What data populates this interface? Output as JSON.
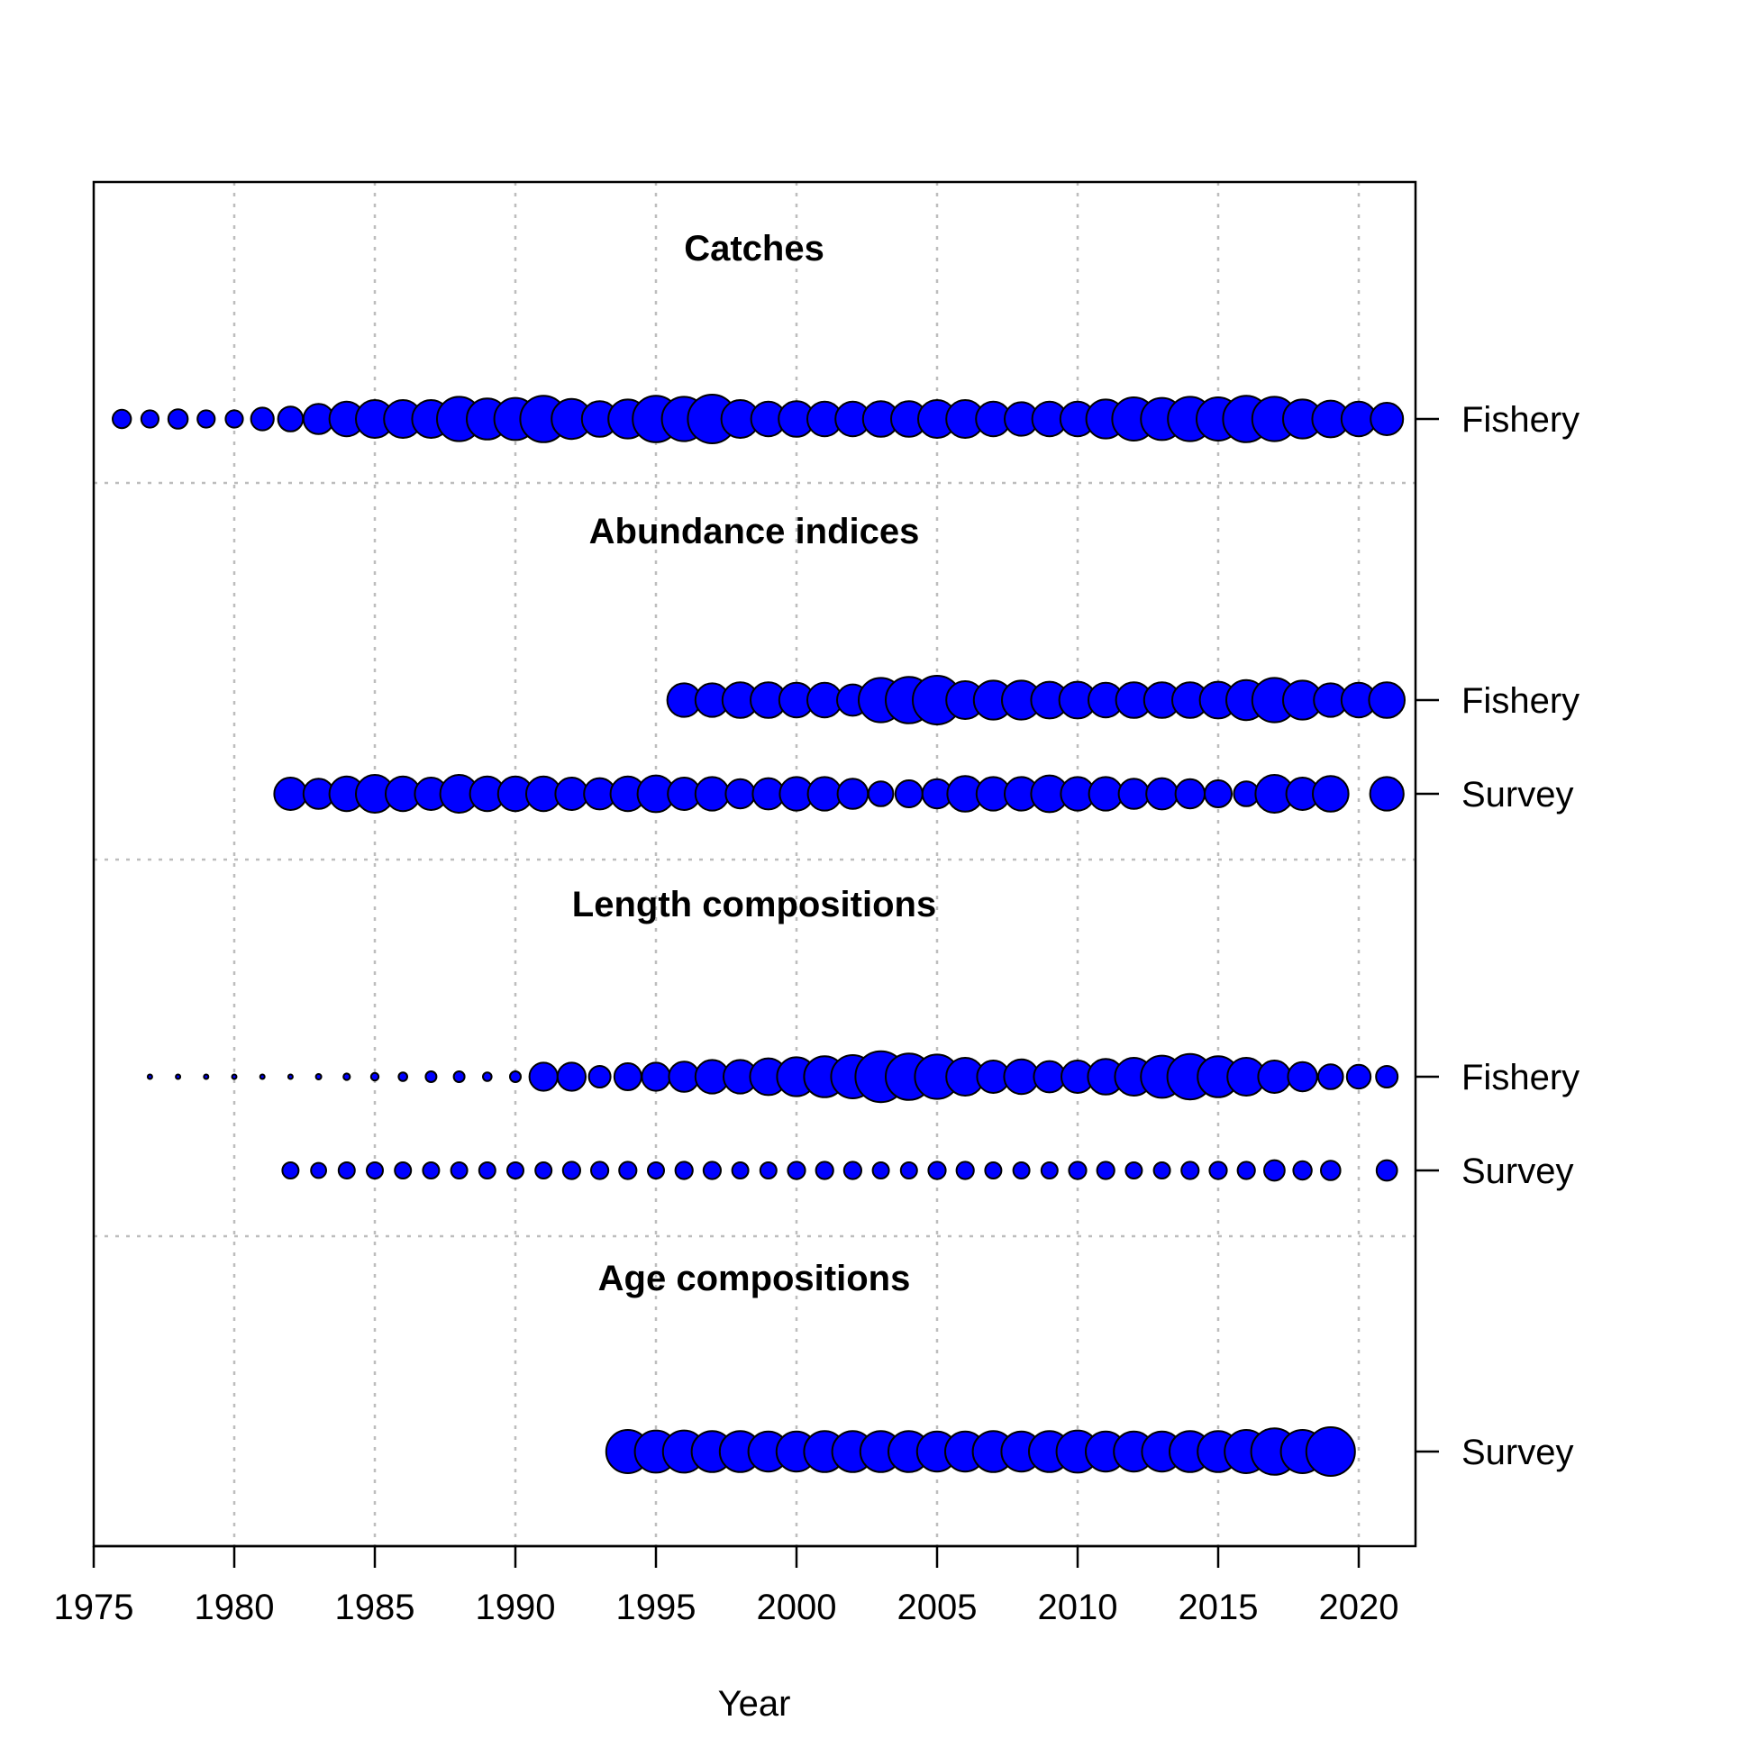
{
  "chart_data": {
    "type": "scatter",
    "subtype": "bubble-timeline",
    "xlabel": "Year",
    "xlim": [
      1975,
      2022
    ],
    "x_ticks": [
      1975,
      1980,
      1985,
      1990,
      1995,
      2000,
      2005,
      2010,
      2015,
      2020
    ],
    "grid": true,
    "point_color": "#0000ff",
    "point_outline": "#000000",
    "sections": [
      {
        "title": "Catches",
        "rows": [
          {
            "label": "Fishery",
            "points": [
              [
                1976,
                0.34
              ],
              [
                1977,
                0.32
              ],
              [
                1978,
                0.36
              ],
              [
                1979,
                0.32
              ],
              [
                1980,
                0.32
              ],
              [
                1981,
                0.42
              ],
              [
                1982,
                0.46
              ],
              [
                1983,
                0.56
              ],
              [
                1984,
                0.64
              ],
              [
                1985,
                0.7
              ],
              [
                1986,
                0.7
              ],
              [
                1987,
                0.7
              ],
              [
                1988,
                0.82
              ],
              [
                1989,
                0.76
              ],
              [
                1990,
                0.78
              ],
              [
                1991,
                0.86
              ],
              [
                1992,
                0.74
              ],
              [
                1993,
                0.66
              ],
              [
                1994,
                0.72
              ],
              [
                1995,
                0.86
              ],
              [
                1996,
                0.82
              ],
              [
                1997,
                0.9
              ],
              [
                1998,
                0.7
              ],
              [
                1999,
                0.64
              ],
              [
                2000,
                0.66
              ],
              [
                2001,
                0.64
              ],
              [
                2002,
                0.64
              ],
              [
                2003,
                0.66
              ],
              [
                2004,
                0.66
              ],
              [
                2005,
                0.7
              ],
              [
                2006,
                0.7
              ],
              [
                2007,
                0.64
              ],
              [
                2008,
                0.62
              ],
              [
                2009,
                0.64
              ],
              [
                2010,
                0.64
              ],
              [
                2011,
                0.72
              ],
              [
                2012,
                0.8
              ],
              [
                2013,
                0.78
              ],
              [
                2014,
                0.82
              ],
              [
                2015,
                0.8
              ],
              [
                2016,
                0.86
              ],
              [
                2017,
                0.82
              ],
              [
                2018,
                0.72
              ],
              [
                2019,
                0.68
              ],
              [
                2020,
                0.64
              ],
              [
                2021,
                0.6
              ]
            ]
          }
        ]
      },
      {
        "title": "Abundance indices",
        "rows": [
          {
            "label": "Fishery",
            "points": [
              [
                1996,
                0.62
              ],
              [
                1997,
                0.62
              ],
              [
                1998,
                0.66
              ],
              [
                1999,
                0.66
              ],
              [
                2000,
                0.64
              ],
              [
                2001,
                0.64
              ],
              [
                2002,
                0.58
              ],
              [
                2003,
                0.82
              ],
              [
                2004,
                0.86
              ],
              [
                2005,
                0.9
              ],
              [
                2006,
                0.7
              ],
              [
                2007,
                0.72
              ],
              [
                2008,
                0.72
              ],
              [
                2009,
                0.68
              ],
              [
                2010,
                0.68
              ],
              [
                2011,
                0.64
              ],
              [
                2012,
                0.66
              ],
              [
                2013,
                0.66
              ],
              [
                2014,
                0.66
              ],
              [
                2015,
                0.68
              ],
              [
                2016,
                0.74
              ],
              [
                2017,
                0.82
              ],
              [
                2018,
                0.72
              ],
              [
                2019,
                0.62
              ],
              [
                2020,
                0.64
              ],
              [
                2021,
                0.66
              ]
            ]
          },
          {
            "label": "Survey",
            "points": [
              [
                1982,
                0.6
              ],
              [
                1983,
                0.56
              ],
              [
                1984,
                0.64
              ],
              [
                1985,
                0.7
              ],
              [
                1986,
                0.64
              ],
              [
                1987,
                0.6
              ],
              [
                1988,
                0.7
              ],
              [
                1989,
                0.64
              ],
              [
                1990,
                0.64
              ],
              [
                1991,
                0.64
              ],
              [
                1992,
                0.6
              ],
              [
                1993,
                0.58
              ],
              [
                1994,
                0.64
              ],
              [
                1995,
                0.68
              ],
              [
                1996,
                0.6
              ],
              [
                1997,
                0.62
              ],
              [
                1998,
                0.54
              ],
              [
                1999,
                0.58
              ],
              [
                2000,
                0.62
              ],
              [
                2001,
                0.62
              ],
              [
                2002,
                0.56
              ],
              [
                2003,
                0.46
              ],
              [
                2004,
                0.5
              ],
              [
                2005,
                0.54
              ],
              [
                2006,
                0.66
              ],
              [
                2007,
                0.62
              ],
              [
                2008,
                0.62
              ],
              [
                2009,
                0.68
              ],
              [
                2010,
                0.62
              ],
              [
                2011,
                0.62
              ],
              [
                2012,
                0.56
              ],
              [
                2013,
                0.58
              ],
              [
                2014,
                0.54
              ],
              [
                2015,
                0.5
              ],
              [
                2016,
                0.46
              ],
              [
                2017,
                0.7
              ],
              [
                2018,
                0.6
              ],
              [
                2019,
                0.66
              ],
              [
                2021,
                0.62
              ]
            ]
          }
        ]
      },
      {
        "title": "Length compositions",
        "rows": [
          {
            "label": "Fishery",
            "points": [
              [
                1977,
                0.05
              ],
              [
                1978,
                0.06
              ],
              [
                1979,
                0.06
              ],
              [
                1980,
                0.06
              ],
              [
                1981,
                0.06
              ],
              [
                1982,
                0.04
              ],
              [
                1983,
                0.1
              ],
              [
                1984,
                0.12
              ],
              [
                1985,
                0.14
              ],
              [
                1986,
                0.16
              ],
              [
                1987,
                0.2
              ],
              [
                1988,
                0.2
              ],
              [
                1989,
                0.16
              ],
              [
                1990,
                0.2
              ],
              [
                1991,
                0.52
              ],
              [
                1992,
                0.52
              ],
              [
                1993,
                0.4
              ],
              [
                1994,
                0.5
              ],
              [
                1995,
                0.52
              ],
              [
                1996,
                0.56
              ],
              [
                1997,
                0.62
              ],
              [
                1998,
                0.62
              ],
              [
                1999,
                0.68
              ],
              [
                2000,
                0.72
              ],
              [
                2001,
                0.76
              ],
              [
                2002,
                0.8
              ],
              [
                2003,
                0.94
              ],
              [
                2004,
                0.86
              ],
              [
                2005,
                0.82
              ],
              [
                2006,
                0.7
              ],
              [
                2007,
                0.6
              ],
              [
                2008,
                0.64
              ],
              [
                2009,
                0.58
              ],
              [
                2010,
                0.6
              ],
              [
                2011,
                0.66
              ],
              [
                2012,
                0.7
              ],
              [
                2013,
                0.78
              ],
              [
                2014,
                0.84
              ],
              [
                2015,
                0.76
              ],
              [
                2016,
                0.7
              ],
              [
                2017,
                0.6
              ],
              [
                2018,
                0.54
              ],
              [
                2019,
                0.46
              ],
              [
                2020,
                0.44
              ],
              [
                2021,
                0.4
              ]
            ]
          },
          {
            "label": "Survey",
            "points": [
              [
                1982,
                0.3
              ],
              [
                1983,
                0.28
              ],
              [
                1984,
                0.3
              ],
              [
                1985,
                0.3
              ],
              [
                1986,
                0.3
              ],
              [
                1987,
                0.3
              ],
              [
                1988,
                0.3
              ],
              [
                1989,
                0.3
              ],
              [
                1990,
                0.3
              ],
              [
                1991,
                0.3
              ],
              [
                1992,
                0.32
              ],
              [
                1993,
                0.32
              ],
              [
                1994,
                0.32
              ],
              [
                1995,
                0.3
              ],
              [
                1996,
                0.32
              ],
              [
                1997,
                0.32
              ],
              [
                1998,
                0.3
              ],
              [
                1999,
                0.3
              ],
              [
                2000,
                0.32
              ],
              [
                2001,
                0.32
              ],
              [
                2002,
                0.32
              ],
              [
                2003,
                0.3
              ],
              [
                2004,
                0.3
              ],
              [
                2005,
                0.32
              ],
              [
                2006,
                0.32
              ],
              [
                2007,
                0.3
              ],
              [
                2008,
                0.3
              ],
              [
                2009,
                0.3
              ],
              [
                2010,
                0.32
              ],
              [
                2011,
                0.32
              ],
              [
                2012,
                0.3
              ],
              [
                2013,
                0.3
              ],
              [
                2014,
                0.32
              ],
              [
                2015,
                0.32
              ],
              [
                2016,
                0.32
              ],
              [
                2017,
                0.38
              ],
              [
                2018,
                0.34
              ],
              [
                2019,
                0.36
              ],
              [
                2021,
                0.38
              ]
            ]
          }
        ]
      },
      {
        "title": "Age compositions",
        "rows": [
          {
            "label": "Survey",
            "points": [
              [
                1994,
                0.8
              ],
              [
                1995,
                0.78
              ],
              [
                1996,
                0.78
              ],
              [
                1997,
                0.76
              ],
              [
                1998,
                0.76
              ],
              [
                1999,
                0.74
              ],
              [
                2000,
                0.74
              ],
              [
                2001,
                0.76
              ],
              [
                2002,
                0.76
              ],
              [
                2003,
                0.76
              ],
              [
                2004,
                0.76
              ],
              [
                2005,
                0.74
              ],
              [
                2006,
                0.74
              ],
              [
                2007,
                0.76
              ],
              [
                2008,
                0.74
              ],
              [
                2009,
                0.76
              ],
              [
                2010,
                0.78
              ],
              [
                2011,
                0.74
              ],
              [
                2012,
                0.74
              ],
              [
                2013,
                0.74
              ],
              [
                2014,
                0.76
              ],
              [
                2015,
                0.76
              ],
              [
                2016,
                0.8
              ],
              [
                2017,
                0.86
              ],
              [
                2018,
                0.8
              ],
              [
                2019,
                0.9
              ]
            ]
          }
        ]
      }
    ]
  }
}
